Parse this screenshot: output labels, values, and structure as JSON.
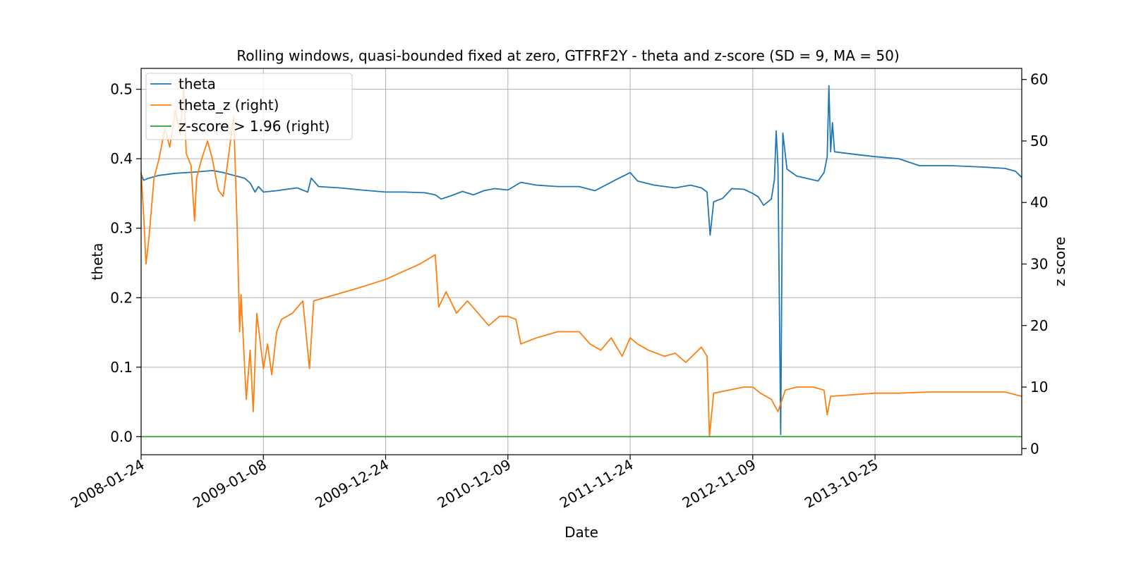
{
  "chart_data": {
    "type": "line",
    "title": "Rolling windows, quasi-bounded fixed at zero, GTFRF2Y - theta and z-score (SD = 9, MA = 50)",
    "xlabel": "Date",
    "ylabel": "theta",
    "ylabel_right": "z score",
    "x_tick_labels": [
      "2008-01-24",
      "2009-01-08",
      "2009-12-24",
      "2010-12-09",
      "2011-11-24",
      "2012-11-09",
      "2013-10-25"
    ],
    "xlim": [
      "2008-01-24",
      "2014-12-19"
    ],
    "ylim": [
      -0.026,
      0.53
    ],
    "ylim_right": [
      -1.0,
      61.8
    ],
    "y_ticks": [
      "0.0",
      "0.1",
      "0.2",
      "0.3",
      "0.4",
      "0.5"
    ],
    "y_ticks_right": [
      "0",
      "10",
      "20",
      "30",
      "40",
      "50",
      "60"
    ],
    "grid": true,
    "legend_position": "top-left",
    "series": [
      {
        "name": "theta",
        "axis": "left",
        "color": "#1f77b4",
        "points": [
          [
            "2008-01-24",
            0.378
          ],
          [
            "2008-01-31",
            0.369
          ],
          [
            "2008-02-15",
            0.372
          ],
          [
            "2008-03-15",
            0.376
          ],
          [
            "2008-05-01",
            0.379
          ],
          [
            "2008-07-01",
            0.381
          ],
          [
            "2008-08-15",
            0.383
          ],
          [
            "2008-09-15",
            0.38
          ],
          [
            "2008-10-15",
            0.376
          ],
          [
            "2008-11-15",
            0.372
          ],
          [
            "2008-12-01",
            0.365
          ],
          [
            "2008-12-15",
            0.352
          ],
          [
            "2008-12-25",
            0.36
          ],
          [
            "2009-01-08",
            0.352
          ],
          [
            "2009-02-15",
            0.354
          ],
          [
            "2009-03-15",
            0.356
          ],
          [
            "2009-04-15",
            0.358
          ],
          [
            "2009-05-15",
            0.352
          ],
          [
            "2009-05-25",
            0.372
          ],
          [
            "2009-06-15",
            0.36
          ],
          [
            "2009-08-15",
            0.358
          ],
          [
            "2009-10-15",
            0.355
          ],
          [
            "2009-12-24",
            0.352
          ],
          [
            "2010-02-15",
            0.352
          ],
          [
            "2010-04-15",
            0.351
          ],
          [
            "2010-05-15",
            0.348
          ],
          [
            "2010-06-01",
            0.342
          ],
          [
            "2010-07-01",
            0.347
          ],
          [
            "2010-08-01",
            0.353
          ],
          [
            "2010-09-01",
            0.348
          ],
          [
            "2010-10-01",
            0.354
          ],
          [
            "2010-11-01",
            0.357
          ],
          [
            "2010-12-09",
            0.355
          ],
          [
            "2011-01-15",
            0.366
          ],
          [
            "2011-03-01",
            0.362
          ],
          [
            "2011-05-01",
            0.36
          ],
          [
            "2011-07-01",
            0.36
          ],
          [
            "2011-08-15",
            0.354
          ],
          [
            "2011-09-15",
            0.362
          ],
          [
            "2011-10-15",
            0.37
          ],
          [
            "2011-11-24",
            0.38
          ],
          [
            "2011-12-15",
            0.368
          ],
          [
            "2012-02-01",
            0.362
          ],
          [
            "2012-04-01",
            0.358
          ],
          [
            "2012-05-15",
            0.362
          ],
          [
            "2012-06-15",
            0.358
          ],
          [
            "2012-07-01",
            0.352
          ],
          [
            "2012-07-10",
            0.29
          ],
          [
            "2012-07-20",
            0.338
          ],
          [
            "2012-08-15",
            0.343
          ],
          [
            "2012-09-10",
            0.357
          ],
          [
            "2012-10-15",
            0.356
          ],
          [
            "2012-11-09",
            0.35
          ],
          [
            "2012-11-25",
            0.345
          ],
          [
            "2012-12-10",
            0.333
          ],
          [
            "2013-01-01",
            0.342
          ],
          [
            "2013-01-10",
            0.37
          ],
          [
            "2013-01-15",
            0.44
          ],
          [
            "2013-01-20",
            0.39
          ],
          [
            "2013-01-28",
            0.003
          ],
          [
            "2013-02-03",
            0.437
          ],
          [
            "2013-02-15",
            0.385
          ],
          [
            "2013-03-15",
            0.375
          ],
          [
            "2013-05-15",
            0.368
          ],
          [
            "2013-06-01",
            0.38
          ],
          [
            "2013-06-10",
            0.403
          ],
          [
            "2013-06-15",
            0.505
          ],
          [
            "2013-06-20",
            0.41
          ],
          [
            "2013-06-25",
            0.452
          ],
          [
            "2013-07-01",
            0.41
          ],
          [
            "2013-09-01",
            0.406
          ],
          [
            "2013-10-25",
            0.403
          ],
          [
            "2014-01-01",
            0.4
          ],
          [
            "2014-03-01",
            0.39
          ],
          [
            "2014-06-01",
            0.39
          ],
          [
            "2014-09-01",
            0.388
          ],
          [
            "2014-11-01",
            0.386
          ],
          [
            "2014-12-01",
            0.382
          ],
          [
            "2014-12-19",
            0.373
          ]
        ]
      },
      {
        "name": "theta_z (right)",
        "axis": "right",
        "color": "#ff7f0e",
        "points": [
          [
            "2008-01-24",
            45.0
          ],
          [
            "2008-02-01",
            37.0
          ],
          [
            "2008-02-07",
            30.0
          ],
          [
            "2008-02-15",
            34.0
          ],
          [
            "2008-03-01",
            44.0
          ],
          [
            "2008-03-15",
            47.0
          ],
          [
            "2008-04-01",
            52.0
          ],
          [
            "2008-04-15",
            49.0
          ],
          [
            "2008-05-01",
            55.0
          ],
          [
            "2008-05-15",
            51.0
          ],
          [
            "2008-05-25",
            59.0
          ],
          [
            "2008-06-01",
            48.0
          ],
          [
            "2008-06-15",
            46.0
          ],
          [
            "2008-06-25",
            37.0
          ],
          [
            "2008-07-01",
            44.0
          ],
          [
            "2008-07-15",
            47.0
          ],
          [
            "2008-08-01",
            50.0
          ],
          [
            "2008-08-15",
            47.0
          ],
          [
            "2008-09-01",
            42.0
          ],
          [
            "2008-09-15",
            41.0
          ],
          [
            "2008-10-01",
            48.0
          ],
          [
            "2008-10-15",
            54.0
          ],
          [
            "2008-10-25",
            36.0
          ],
          [
            "2008-11-01",
            19.0
          ],
          [
            "2008-11-05",
            25.0
          ],
          [
            "2008-11-20",
            8.0
          ],
          [
            "2008-12-01",
            16.0
          ],
          [
            "2008-12-10",
            6.0
          ],
          [
            "2008-12-20",
            22.0
          ],
          [
            "2009-01-08",
            13.0
          ],
          [
            "2009-01-20",
            17.0
          ],
          [
            "2009-02-01",
            12.0
          ],
          [
            "2009-02-15",
            19.0
          ],
          [
            "2009-03-01",
            21.0
          ],
          [
            "2009-04-01",
            22.0
          ],
          [
            "2009-05-01",
            24.0
          ],
          [
            "2009-05-20",
            13.0
          ],
          [
            "2009-06-01",
            24.0
          ],
          [
            "2009-08-01",
            25.0
          ],
          [
            "2009-10-01",
            26.0
          ],
          [
            "2009-12-24",
            27.5
          ],
          [
            "2010-02-01",
            28.5
          ],
          [
            "2010-04-01",
            30.0
          ],
          [
            "2010-05-15",
            31.5
          ],
          [
            "2010-05-25",
            23.0
          ],
          [
            "2010-06-15",
            25.5
          ],
          [
            "2010-07-15",
            22.0
          ],
          [
            "2010-08-15",
            24.0
          ],
          [
            "2010-09-15",
            22.0
          ],
          [
            "2010-10-15",
            20.0
          ],
          [
            "2010-11-15",
            21.5
          ],
          [
            "2010-12-09",
            21.5
          ],
          [
            "2011-01-01",
            21.0
          ],
          [
            "2011-01-15",
            17.0
          ],
          [
            "2011-03-01",
            18.0
          ],
          [
            "2011-05-01",
            19.0
          ],
          [
            "2011-07-01",
            19.0
          ],
          [
            "2011-08-01",
            17.0
          ],
          [
            "2011-09-01",
            16.0
          ],
          [
            "2011-10-01",
            18.0
          ],
          [
            "2011-11-01",
            15.0
          ],
          [
            "2011-11-24",
            18.0
          ],
          [
            "2011-12-15",
            17.0
          ],
          [
            "2012-01-15",
            16.0
          ],
          [
            "2012-03-01",
            15.0
          ],
          [
            "2012-04-01",
            15.5
          ],
          [
            "2012-05-01",
            14.0
          ],
          [
            "2012-06-15",
            16.5
          ],
          [
            "2012-07-01",
            15.0
          ],
          [
            "2012-07-08",
            2.0
          ],
          [
            "2012-07-20",
            9.0
          ],
          [
            "2012-09-01",
            9.5
          ],
          [
            "2012-10-15",
            10.0
          ],
          [
            "2012-11-09",
            10.0
          ],
          [
            "2012-12-01",
            9.0
          ],
          [
            "2013-01-01",
            8.0
          ],
          [
            "2013-01-20",
            6.0
          ],
          [
            "2013-02-10",
            9.5
          ],
          [
            "2013-03-15",
            10.0
          ],
          [
            "2013-05-01",
            10.0
          ],
          [
            "2013-06-01",
            9.5
          ],
          [
            "2013-06-10",
            5.5
          ],
          [
            "2013-06-20",
            8.5
          ],
          [
            "2013-10-25",
            9.0
          ],
          [
            "2014-01-01",
            9.0
          ],
          [
            "2014-04-01",
            9.2
          ],
          [
            "2014-08-01",
            9.2
          ],
          [
            "2014-11-01",
            9.2
          ],
          [
            "2014-12-19",
            8.5
          ]
        ]
      },
      {
        "name": "z-score > 1.96 (right)",
        "axis": "left",
        "color": "#2ca02c",
        "points": [
          [
            "2008-01-24",
            0.0
          ],
          [
            "2014-12-19",
            0.0
          ]
        ]
      }
    ]
  }
}
